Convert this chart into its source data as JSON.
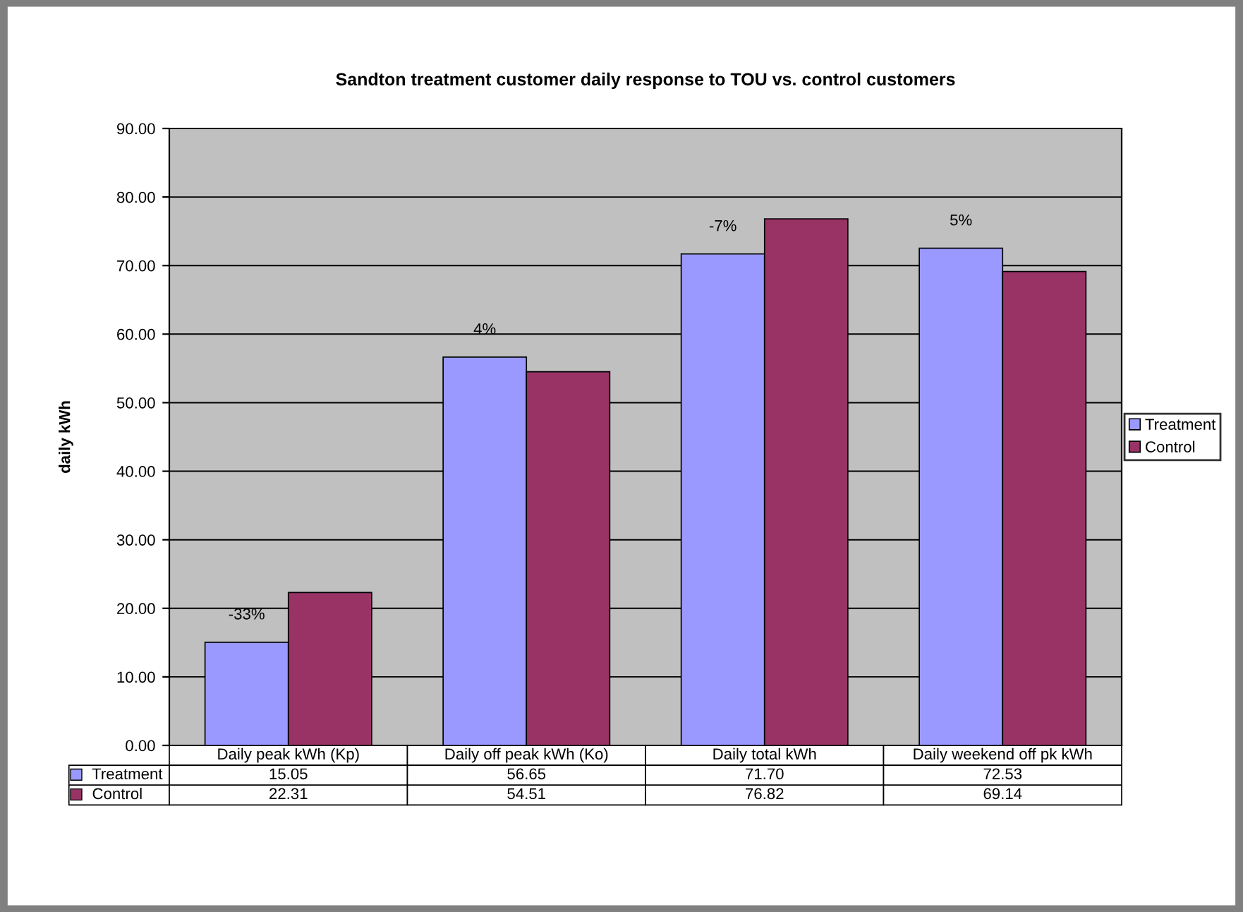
{
  "chart_data": {
    "type": "bar",
    "title": "Sandton treatment customer daily response to TOU vs. control customers",
    "ylabel": "daily kWh",
    "categories": [
      "Daily peak kWh (Kp)",
      "Daily off peak kWh (Ko)",
      "Daily total kWh",
      "Daily weekend off pk kWh"
    ],
    "series": [
      {
        "name": "Treatment",
        "color": "#9999ff",
        "values": [
          15.05,
          56.65,
          71.7,
          72.53
        ],
        "value_labels": [
          "15.05",
          "56.65",
          "71.70",
          "72.53"
        ]
      },
      {
        "name": "Control",
        "color": "#993366",
        "values": [
          22.31,
          54.51,
          76.82,
          69.14
        ],
        "value_labels": [
          "22.31",
          "54.51",
          "76.82",
          "69.14"
        ]
      }
    ],
    "ylim": [
      0,
      90
    ],
    "yticks": [
      {
        "value": 0,
        "label": "0.00"
      },
      {
        "value": 10,
        "label": "10.00"
      },
      {
        "value": 20,
        "label": "20.00"
      },
      {
        "value": 30,
        "label": "30.00"
      },
      {
        "value": 40,
        "label": "40.00"
      },
      {
        "value": 50,
        "label": "50.00"
      },
      {
        "value": 60,
        "label": "60.00"
      },
      {
        "value": 70,
        "label": "70.00"
      },
      {
        "value": 80,
        "label": "80.00"
      },
      {
        "value": 90,
        "label": "90.00"
      }
    ],
    "annotations": [
      {
        "text": "-33%",
        "x": "Daily peak kWh (Kp)",
        "y": 15.05
      },
      {
        "text": "4%",
        "x": "Daily off peak kWh (Ko)",
        "y": 56.65
      },
      {
        "text": "-7%",
        "x": "Daily total kWh",
        "y": 71.7
      },
      {
        "text": "5%",
        "x": "Daily weekend off pk kWh",
        "y": 72.53
      }
    ],
    "grid": "y",
    "legend": "right"
  }
}
